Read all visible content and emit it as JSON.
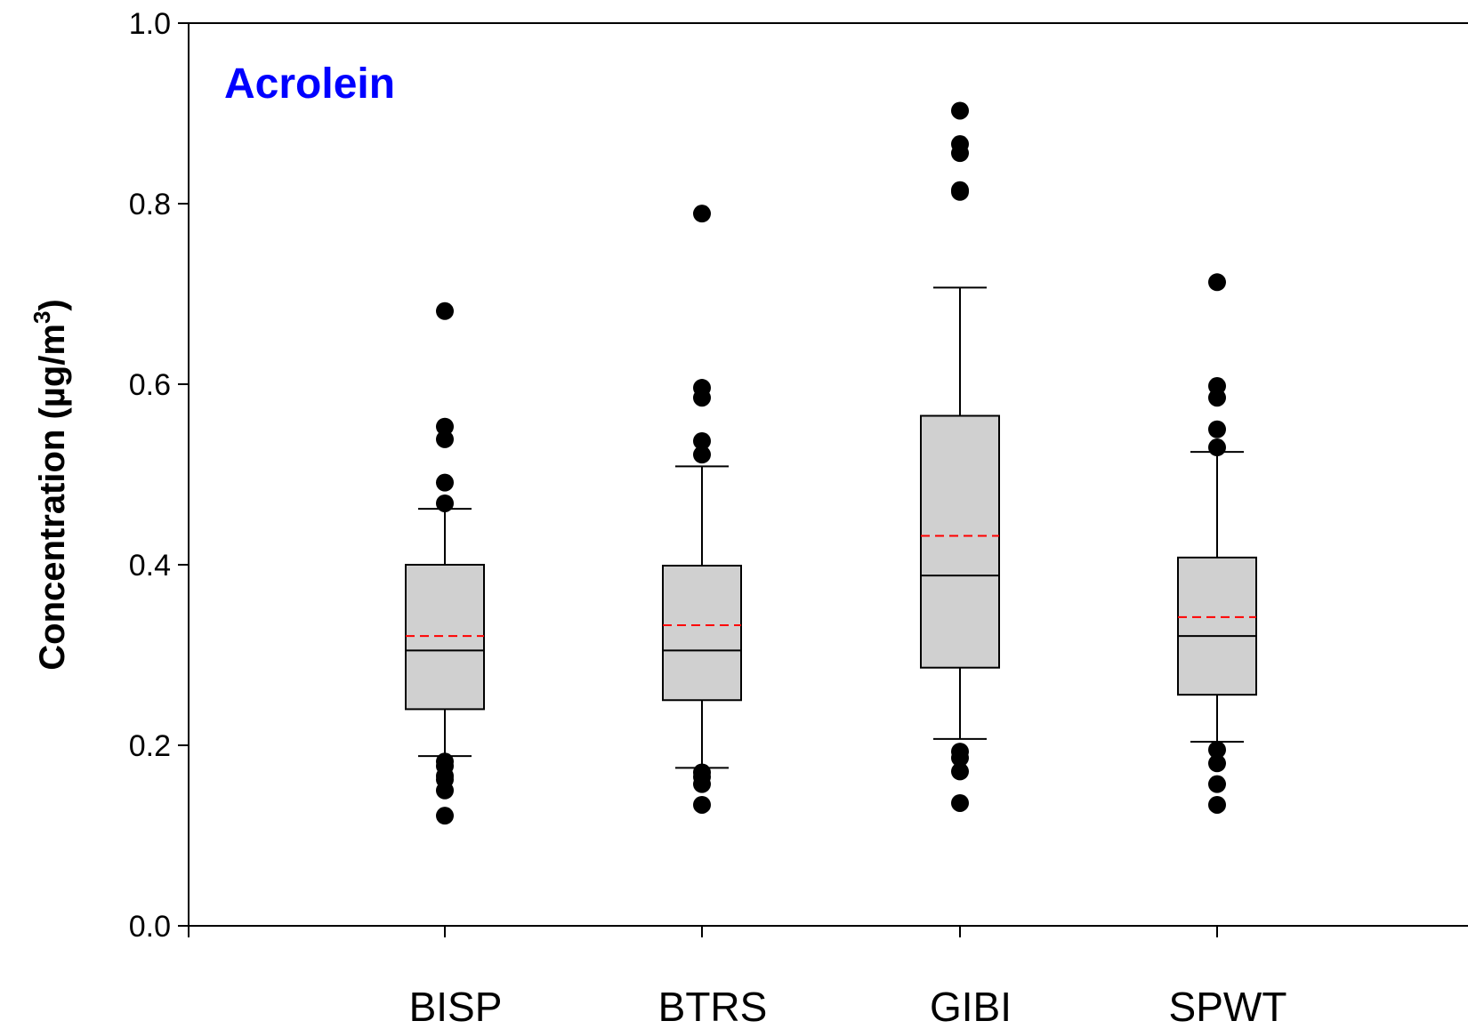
{
  "chart_data": {
    "type": "box",
    "title": "Acrolein",
    "title_color": "#0000ff",
    "ylabel": "Concentration (µg/m3)",
    "ylabel_main": "Concentration (µg/m",
    "ylabel_sup": "3",
    "ylabel_close": ")",
    "xlabel": "",
    "ylim": [
      0.0,
      1.0
    ],
    "yticks": [
      "0.0",
      "0.2",
      "0.4",
      "0.6",
      "0.8",
      "1.0"
    ],
    "box_fill": "#d0d0d0",
    "mean_color": "#ff0000",
    "categories": [
      "BISP",
      "BTRS",
      "GIBI",
      "SPWT"
    ],
    "boxes": [
      {
        "name": "BISP",
        "whisker_low": 0.188,
        "q1": 0.24,
        "median": 0.305,
        "mean": 0.321,
        "q3": 0.4,
        "whisker_high": 0.462,
        "outliers": [
          0.681,
          0.553,
          0.539,
          0.491,
          0.468,
          0.182,
          0.177,
          0.166,
          0.162,
          0.15,
          0.122
        ]
      },
      {
        "name": "BTRS",
        "whisker_low": 0.175,
        "q1": 0.25,
        "median": 0.305,
        "mean": 0.333,
        "q3": 0.399,
        "whisker_high": 0.509,
        "outliers": [
          0.789,
          0.596,
          0.585,
          0.537,
          0.522,
          0.17,
          0.165,
          0.157,
          0.134
        ]
      },
      {
        "name": "GIBI",
        "whisker_low": 0.207,
        "q1": 0.286,
        "median": 0.388,
        "mean": 0.432,
        "q3": 0.565,
        "whisker_high": 0.707,
        "outliers": [
          0.903,
          0.866,
          0.856,
          0.815,
          0.813,
          0.193,
          0.186,
          0.171,
          0.136
        ]
      },
      {
        "name": "SPWT",
        "whisker_low": 0.204,
        "q1": 0.256,
        "median": 0.321,
        "mean": 0.342,
        "q3": 0.408,
        "whisker_high": 0.525,
        "outliers": [
          0.713,
          0.598,
          0.585,
          0.55,
          0.53,
          0.195,
          0.18,
          0.157,
          0.134
        ]
      }
    ]
  }
}
